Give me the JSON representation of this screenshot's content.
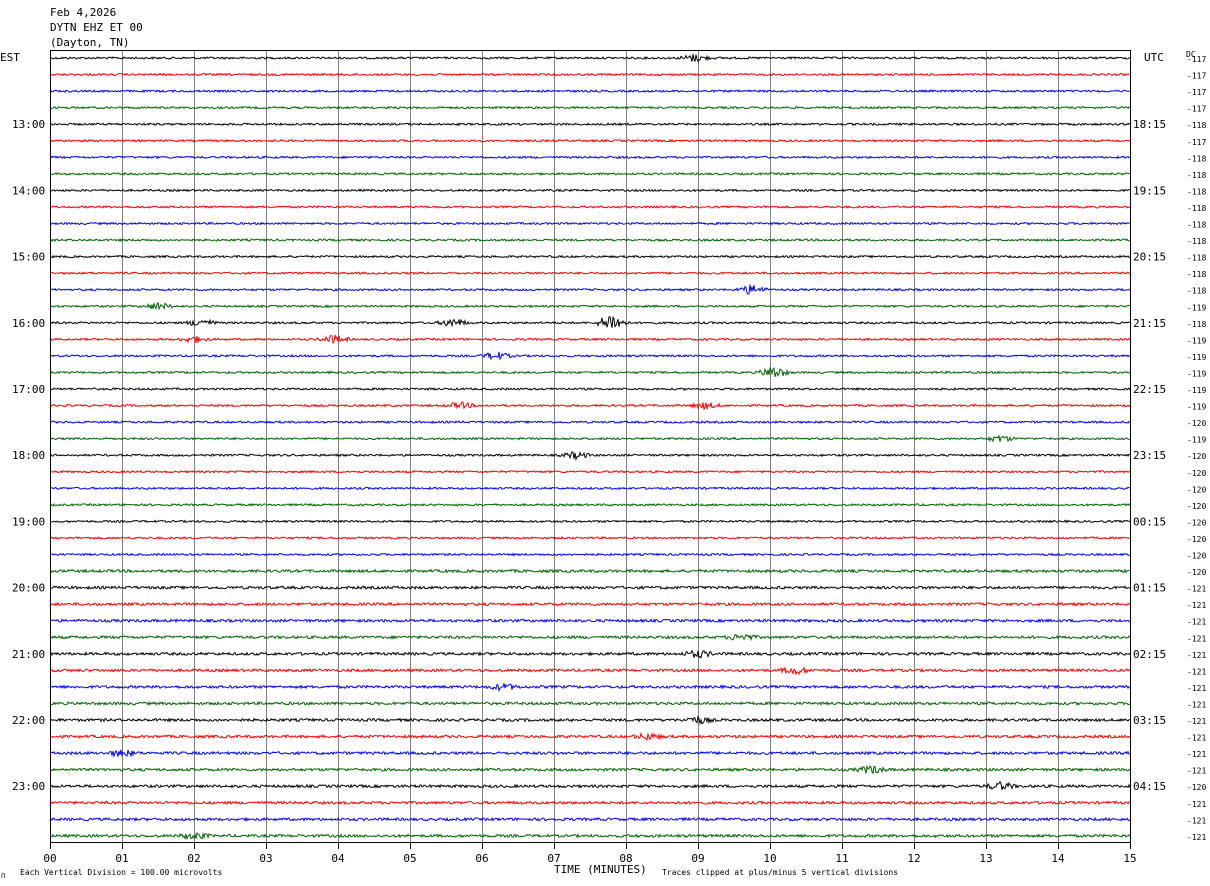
{
  "header": {
    "date": "Feb 4,2026",
    "station": "DYTN EHZ ET 00",
    "location": "(Dayton, TN)"
  },
  "left_axis_title": "EST",
  "right_axis_title": "UTC",
  "dc_title": "DC",
  "footer": {
    "scale_note": "Each Vertical Division =  100.00 microvolts",
    "clip_note": "Traces clipped at plus/minus 5 vertical divisions",
    "corner_mark": "∩"
  },
  "colors": {
    "trace_cycle": [
      "#000000",
      "#ff0000",
      "#0000ff",
      "#006400"
    ],
    "grid": "#808080",
    "frame": "#000000"
  },
  "chart_data": {
    "type": "line",
    "subtype": "helicorder",
    "xlabel": "TIME (MINUTES)",
    "xlim": [
      0,
      15
    ],
    "x_ticks": [
      "00",
      "01",
      "02",
      "03",
      "04",
      "05",
      "06",
      "07",
      "08",
      "09",
      "10",
      "11",
      "12",
      "13",
      "14",
      "15"
    ],
    "minutes_per_trace": 15,
    "trace_count": 48,
    "left_hour_labels": [
      "13:00",
      "14:00",
      "15:00",
      "16:00",
      "17:00",
      "18:00",
      "19:00",
      "20:00",
      "21:00",
      "22:00",
      "23:00"
    ],
    "right_hour_labels": [
      "18:15",
      "19:15",
      "20:15",
      "21:15",
      "22:15",
      "23:15",
      "00:15",
      "01:15",
      "02:15",
      "03:15",
      "04:15"
    ],
    "dc_offsets": [
      -117,
      -117,
      -117,
      -117,
      -118,
      -117,
      -118,
      -118,
      -118,
      -118,
      -118,
      -118,
      -118,
      -118,
      -118,
      -119,
      -118,
      -119,
      -119,
      -119,
      -119,
      -119,
      -120,
      -119,
      -120,
      -120,
      -120,
      -120,
      -120,
      -120,
      -120,
      -120,
      -121,
      -121,
      -121,
      -121,
      -121,
      -121,
      -121,
      -121,
      -121,
      -121,
      -121,
      -121,
      -120,
      -121,
      -121,
      -121
    ],
    "events": [
      {
        "trace": 0,
        "minute": 8.95,
        "amplitude": 1.6
      },
      {
        "trace": 14,
        "minute": 9.75,
        "amplitude": 2.2
      },
      {
        "trace": 15,
        "minute": 1.5,
        "amplitude": 1.5
      },
      {
        "trace": 16,
        "minute": 2.1,
        "amplitude": 1.6
      },
      {
        "trace": 16,
        "minute": 5.6,
        "amplitude": 1.8
      },
      {
        "trace": 16,
        "minute": 7.8,
        "amplitude": 4.0
      },
      {
        "trace": 17,
        "minute": 2.0,
        "amplitude": 1.4
      },
      {
        "trace": 17,
        "minute": 3.95,
        "amplitude": 1.8
      },
      {
        "trace": 18,
        "minute": 6.2,
        "amplitude": 1.7
      },
      {
        "trace": 19,
        "minute": 10.05,
        "amplitude": 2.6
      },
      {
        "trace": 21,
        "minute": 5.7,
        "amplitude": 1.3
      },
      {
        "trace": 21,
        "minute": 9.1,
        "amplitude": 1.4
      },
      {
        "trace": 23,
        "minute": 13.2,
        "amplitude": 1.3
      },
      {
        "trace": 24,
        "minute": 7.3,
        "amplitude": 1.4
      },
      {
        "trace": 35,
        "minute": 9.6,
        "amplitude": 1.4
      },
      {
        "trace": 36,
        "minute": 9.0,
        "amplitude": 1.5
      },
      {
        "trace": 37,
        "minute": 10.35,
        "amplitude": 1.5
      },
      {
        "trace": 38,
        "minute": 6.3,
        "amplitude": 1.3
      },
      {
        "trace": 40,
        "minute": 9.0,
        "amplitude": 1.4
      },
      {
        "trace": 41,
        "minute": 8.3,
        "amplitude": 1.3
      },
      {
        "trace": 42,
        "minute": 1.0,
        "amplitude": 1.4
      },
      {
        "trace": 43,
        "minute": 11.4,
        "amplitude": 1.6
      },
      {
        "trace": 44,
        "minute": 13.2,
        "amplitude": 1.6
      },
      {
        "trace": 47,
        "minute": 2.0,
        "amplitude": 1.3
      }
    ]
  }
}
